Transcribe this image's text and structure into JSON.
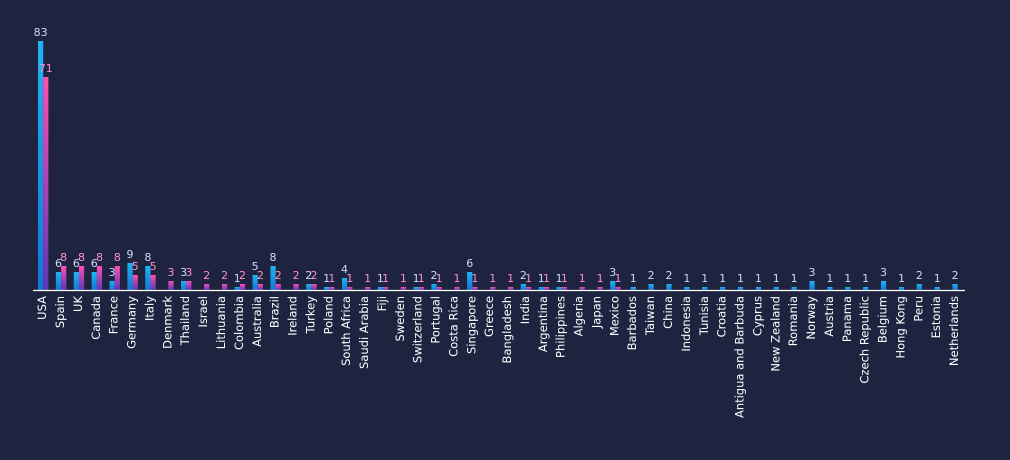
{
  "chart_data": {
    "type": "bar",
    "categories": [
      "USA",
      "Spain",
      "UK",
      "Canada",
      "France",
      "Germany",
      "Italy",
      "Denmark",
      "Thailand",
      "Israel",
      "Lithuania",
      "Colombia",
      "Australia",
      "Brazil",
      "Ireland",
      "Turkey",
      "Poland",
      "South Africa",
      "Saudi Arabia",
      "Fiji",
      "Sweden",
      "Switzerland",
      "Portugal",
      "Costa Rica",
      "Singapore",
      "Greece",
      "Bangladesh",
      "India",
      "Argentina",
      "Philippines",
      "Algeria",
      "Japan",
      "Mexico",
      "Barbados",
      "Taiwan",
      "China",
      "Indonesia",
      "Tunisia",
      "Croatia",
      "Antigua and Barbuda",
      "Cyprus",
      "New Zealand",
      "Romania",
      "Norway",
      "Austria",
      "Panama",
      "Czech Republic",
      "Belgium",
      "Hong Kong",
      "Peru",
      "Estonia",
      "Netherlands"
    ],
    "series": [
      {
        "values": [
          83,
          6,
          6,
          6,
          3,
          9,
          8,
          0,
          3,
          0,
          0,
          1,
          5,
          8,
          0,
          2,
          1,
          4,
          0,
          1,
          0,
          1,
          2,
          0,
          6,
          0,
          0,
          2,
          1,
          1,
          0,
          0,
          3,
          1,
          2,
          2,
          1,
          1,
          1,
          1,
          1,
          1,
          1,
          3,
          1,
          1,
          1,
          3,
          1,
          2,
          1,
          2
        ]
      },
      {
        "values": [
          71,
          8,
          8,
          8,
          8,
          5,
          5,
          3,
          3,
          2,
          2,
          2,
          2,
          2,
          2,
          2,
          1,
          1,
          1,
          1,
          1,
          1,
          1,
          1,
          1,
          1,
          1,
          1,
          1,
          1,
          1,
          1,
          1,
          null,
          null,
          null,
          null,
          null,
          null,
          null,
          null,
          null,
          null,
          null,
          null,
          null,
          null,
          null,
          null,
          null,
          null,
          null
        ]
      }
    ],
    "colors": {
      "background": "#1e2440",
      "series1_top": "#1fb4f2",
      "series1_bottom": "#1277d6",
      "series2_top": "#ff4fb0",
      "series2_bottom": "#5b36b8",
      "series1_label": "#cfd6ff",
      "series2_label": "#ff8fc8",
      "axis": "#ffffff"
    },
    "ylim": [
      0,
      83
    ],
    "grid": false,
    "legend": "none"
  }
}
